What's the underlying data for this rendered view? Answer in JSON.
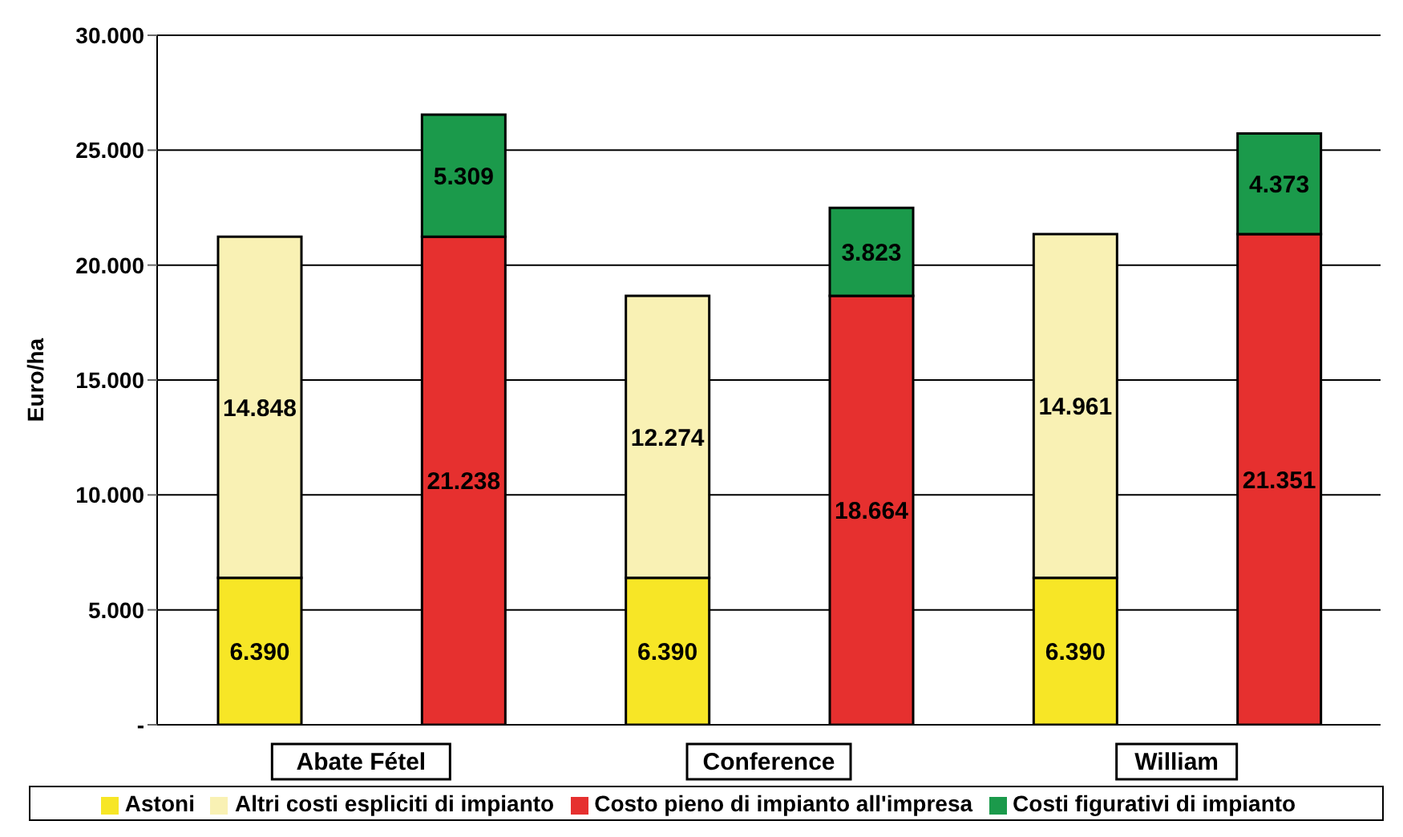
{
  "chart_data": {
    "type": "bar",
    "stacked": true,
    "ylabel": "Euro/ha",
    "categories": [
      "Abate Fétel",
      null,
      "Conference",
      null,
      "William",
      null
    ],
    "series": [
      {
        "name": "Astoni",
        "color": "#f7e626",
        "values": [
          6390,
          null,
          6390,
          null,
          6390,
          null
        ],
        "value_labels": [
          "6.390",
          null,
          "6.390",
          null,
          "6.390",
          null
        ]
      },
      {
        "name": "Altri costi espliciti di impianto",
        "color": "#f9f1b4",
        "values": [
          14848,
          null,
          12274,
          null,
          14961,
          null
        ],
        "value_labels": [
          "14.848",
          null,
          "12.274",
          null,
          "14.961",
          null
        ]
      },
      {
        "name": "Costo pieno di impianto all'impresa",
        "color": "#e6302f",
        "values": [
          null,
          21238,
          null,
          18664,
          null,
          21351
        ],
        "value_labels": [
          null,
          "21.238",
          null,
          "18.664",
          null,
          "21.351"
        ]
      },
      {
        "name": "Costi figurativi di impianto",
        "color": "#1b9a4b",
        "values": [
          null,
          5309,
          null,
          3823,
          null,
          4373
        ],
        "value_labels": [
          null,
          "5.309",
          null,
          "3.823",
          null,
          "4.373"
        ]
      }
    ],
    "ylim": [
      0,
      30000
    ],
    "yticks": [
      {
        "value": 0,
        "label": "-"
      },
      {
        "value": 5000,
        "label": "5.000"
      },
      {
        "value": 10000,
        "label": "10.000"
      },
      {
        "value": 15000,
        "label": "15.000"
      },
      {
        "value": 20000,
        "label": "20.000"
      },
      {
        "value": 25000,
        "label": "25.000"
      },
      {
        "value": 30000,
        "label": "30.000"
      }
    ],
    "grid": "y",
    "legend": "bottom"
  }
}
